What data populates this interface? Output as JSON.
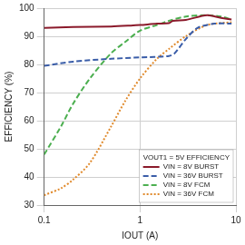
{
  "chart_data": {
    "type": "line",
    "x_label": "IOUT (A)",
    "y_label": "EFFICIENCY (%)",
    "legend_title": "VOUT1 = 5V EFFICIENCY",
    "log": "x",
    "grid": true,
    "legend": "lower right",
    "xlim": [
      0.1,
      10
    ],
    "xticks": [
      0.1,
      1,
      10
    ],
    "ylim": [
      30,
      100
    ],
    "yticks": [
      30,
      40,
      50,
      60,
      70,
      80,
      90,
      100
    ],
    "series": [
      {
        "name": "VIN = 8V BURST",
        "color": "#8b1a2b",
        "line_style": "solid",
        "x": [
          0.1,
          0.2,
          0.5,
          0.8,
          1,
          1.5,
          2,
          2.2,
          3,
          5,
          7,
          9
        ],
        "values": [
          93,
          93.3,
          93.5,
          93.8,
          94,
          94.5,
          94.7,
          95.5,
          95.8,
          97.5,
          96.5,
          96
        ]
      },
      {
        "name": "VIN = 36V BURST",
        "color": "#3a5da8",
        "line_style": "dashed",
        "x": [
          0.1,
          0.2,
          0.5,
          1,
          2,
          2.3,
          3,
          4,
          6,
          9
        ],
        "values": [
          79.5,
          81,
          82,
          82.5,
          83,
          84,
          89,
          93,
          94.5,
          94.5
        ]
      },
      {
        "name": "VIN = 8V FCM",
        "color": "#4caf50",
        "line_style": "dashed",
        "x": [
          0.1,
          0.15,
          0.2,
          0.3,
          0.5,
          0.7,
          1,
          1.5,
          2,
          3,
          5,
          7,
          9
        ],
        "values": [
          48,
          58,
          66,
          75,
          84,
          88,
          92,
          94,
          95.5,
          97,
          97.5,
          97,
          96
        ]
      },
      {
        "name": "VIN = 36V FCM",
        "color": "#e08a2c",
        "line_style": "dotted",
        "x": [
          0.1,
          0.15,
          0.2,
          0.3,
          0.5,
          0.7,
          1,
          1.5,
          2,
          3,
          5,
          9
        ],
        "values": [
          33.5,
          36,
          39,
          45,
          58,
          67,
          75,
          82,
          85.5,
          90,
          94,
          95
        ]
      }
    ]
  }
}
